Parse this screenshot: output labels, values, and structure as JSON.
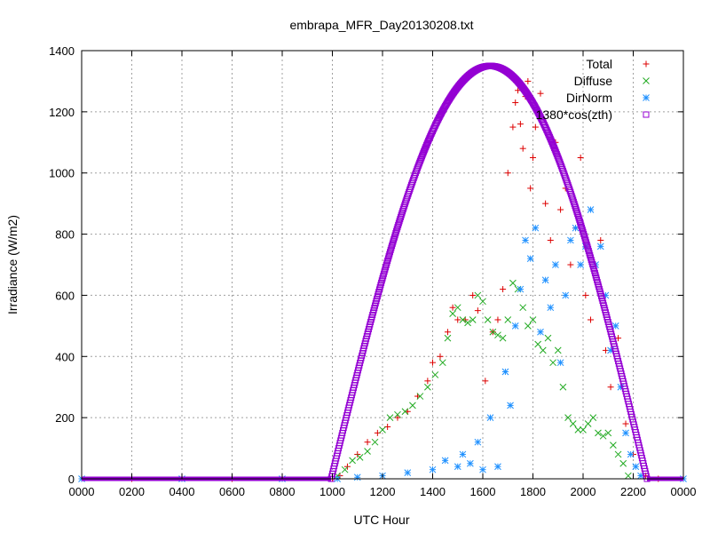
{
  "chart_data": {
    "type": "scatter",
    "title": "embrapa_MFR_Day20130208.txt",
    "xlabel": "UTC Hour",
    "ylabel": "Irradiance (W/m2)",
    "xlim": [
      0,
      24
    ],
    "ylim": [
      0,
      1400
    ],
    "x_ticks": [
      0,
      2,
      4,
      6,
      8,
      10,
      12,
      14,
      16,
      18,
      20,
      22,
      24
    ],
    "x_tick_labels": [
      "0000",
      "0200",
      "0400",
      "0600",
      "0800",
      "1000",
      "1200",
      "1400",
      "1600",
      "1800",
      "2000",
      "2200",
      "0000"
    ],
    "y_ticks": [
      0,
      200,
      400,
      600,
      800,
      1000,
      1200,
      1400
    ],
    "grid": true,
    "legend_position": "top-right",
    "colors": {
      "total": "#dd0000",
      "diffuse": "#22aa22",
      "dirnorm": "#1e90ff",
      "cos": "#9400d3"
    },
    "series": [
      {
        "key": "total",
        "name": "Total",
        "marker": "plus",
        "x": [
          0,
          2,
          4,
          6,
          8,
          10,
          10.3,
          10.6,
          11,
          11.4,
          11.8,
          12.2,
          12.6,
          13,
          13.4,
          13.8,
          14.0,
          14.3,
          14.6,
          14.8,
          15.0,
          15.3,
          15.6,
          15.8,
          16.1,
          16.4,
          16.6,
          16.8,
          17.0,
          17.2,
          17.3,
          17.4,
          17.5,
          17.6,
          17.7,
          17.8,
          17.9,
          18.0,
          18.1,
          18.3,
          18.5,
          18.7,
          18.9,
          19.1,
          19.3,
          19.5,
          19.7,
          19.9,
          20.1,
          20.3,
          20.5,
          20.7,
          20.9,
          21.1,
          21.4,
          21.7,
          22.0,
          22.5,
          23,
          24
        ],
        "y": [
          0,
          0,
          0,
          0,
          0,
          0,
          10,
          40,
          80,
          120,
          150,
          170,
          200,
          220,
          270,
          320,
          380,
          400,
          480,
          560,
          520,
          520,
          600,
          550,
          320,
          480,
          520,
          620,
          1000,
          1150,
          1230,
          1270,
          1160,
          1080,
          1250,
          1300,
          950,
          1050,
          1150,
          1260,
          900,
          780,
          1100,
          880,
          950,
          700,
          820,
          1050,
          600,
          520,
          700,
          780,
          420,
          300,
          460,
          180,
          80,
          10,
          0,
          0
        ]
      },
      {
        "key": "diffuse",
        "name": "Diffuse",
        "marker": "cross",
        "x": [
          10.2,
          10.5,
          10.8,
          11.1,
          11.4,
          11.7,
          12.0,
          12.3,
          12.6,
          12.9,
          13.2,
          13.5,
          13.8,
          14.1,
          14.4,
          14.6,
          14.8,
          15.0,
          15.2,
          15.4,
          15.6,
          15.8,
          16.0,
          16.2,
          16.4,
          16.6,
          16.8,
          17.0,
          17.2,
          17.4,
          17.6,
          17.8,
          18.0,
          18.2,
          18.4,
          18.6,
          18.8,
          19.0,
          19.2,
          19.4,
          19.6,
          19.8,
          20.0,
          20.2,
          20.4,
          20.6,
          20.8,
          21.0,
          21.2,
          21.4,
          21.6,
          21.8
        ],
        "y": [
          10,
          30,
          60,
          70,
          90,
          120,
          160,
          200,
          210,
          220,
          240,
          270,
          300,
          340,
          380,
          460,
          540,
          560,
          520,
          510,
          520,
          600,
          580,
          520,
          480,
          470,
          460,
          520,
          640,
          620,
          560,
          500,
          520,
          440,
          420,
          460,
          380,
          420,
          300,
          200,
          180,
          160,
          160,
          180,
          200,
          150,
          140,
          150,
          110,
          80,
          50,
          10
        ]
      },
      {
        "key": "dirnorm",
        "name": "DirNorm",
        "marker": "star",
        "x": [
          0,
          4,
          8,
          10.2,
          11,
          12,
          13,
          14,
          14.5,
          15,
          15.2,
          15.5,
          15.8,
          16.0,
          16.3,
          16.6,
          16.9,
          17.1,
          17.3,
          17.5,
          17.7,
          17.9,
          18.1,
          18.3,
          18.5,
          18.7,
          18.9,
          19.1,
          19.3,
          19.5,
          19.7,
          19.9,
          20.1,
          20.3,
          20.5,
          20.7,
          20.9,
          21.1,
          21.3,
          21.5,
          21.7,
          21.9,
          22.1,
          22.3,
          24
        ],
        "y": [
          0,
          0,
          0,
          0,
          5,
          10,
          20,
          30,
          60,
          40,
          80,
          50,
          120,
          30,
          200,
          40,
          350,
          240,
          500,
          620,
          780,
          720,
          820,
          480,
          650,
          560,
          700,
          380,
          600,
          780,
          820,
          700,
          760,
          880,
          700,
          760,
          600,
          420,
          500,
          300,
          150,
          80,
          40,
          10,
          0
        ]
      },
      {
        "key": "cos",
        "name": "1380*cos(zth)",
        "marker": "square",
        "curve": {
          "amplitude": 1350,
          "rise": 9.95,
          "peak": 16.3,
          "set": 22.55
        }
      }
    ]
  }
}
